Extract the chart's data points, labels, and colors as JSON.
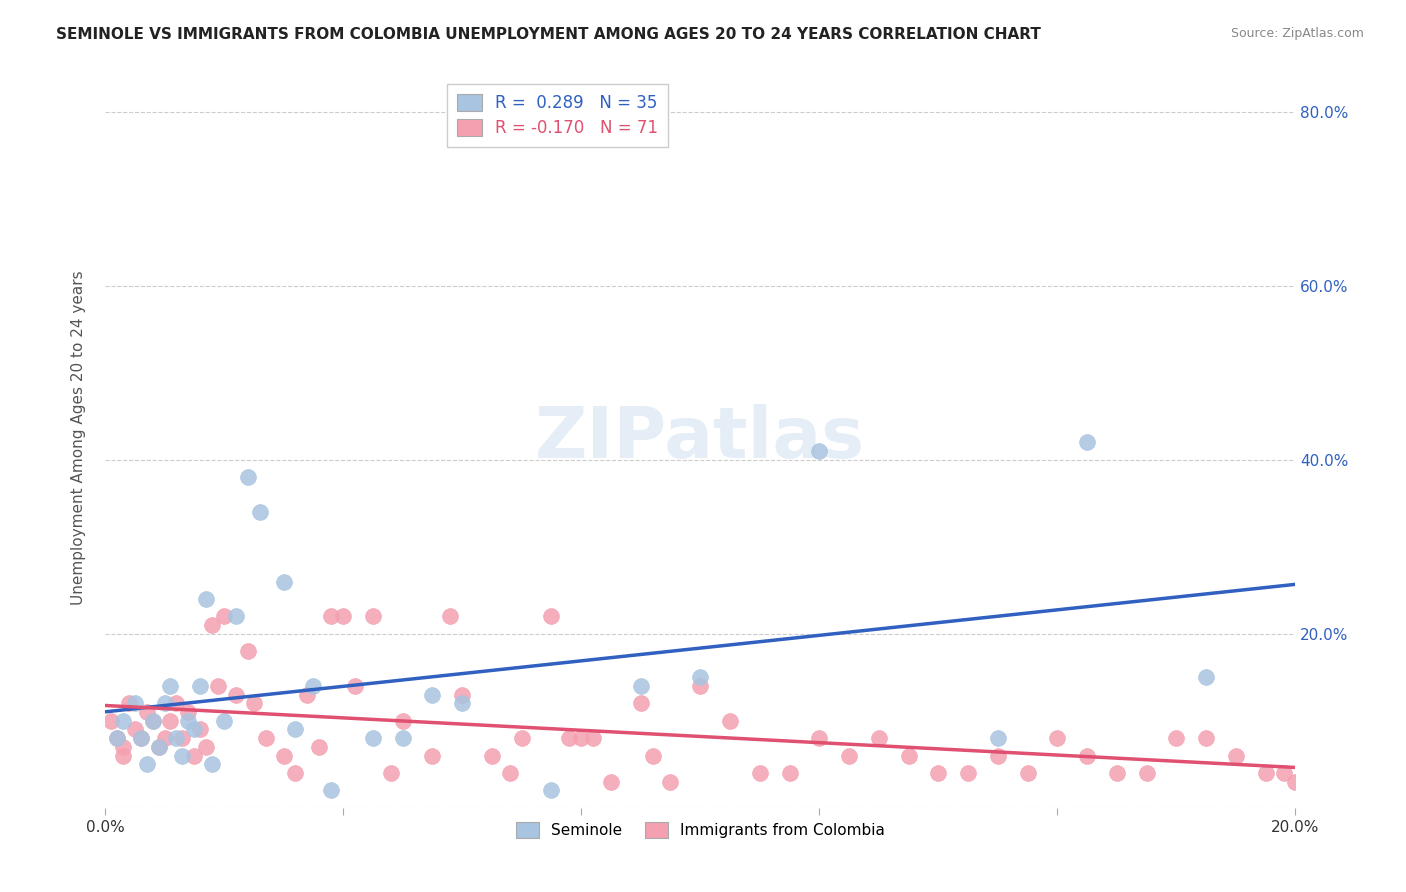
{
  "title": "SEMINOLE VS IMMIGRANTS FROM COLOMBIA UNEMPLOYMENT AMONG AGES 20 TO 24 YEARS CORRELATION CHART",
  "source": "Source: ZipAtlas.com",
  "ylabel": "Unemployment Among Ages 20 to 24 years",
  "xlim": [
    0.0,
    0.2
  ],
  "ylim": [
    0.0,
    0.85
  ],
  "yticks": [
    0.0,
    0.2,
    0.4,
    0.6,
    0.8
  ],
  "ytick_labels": [
    "",
    "20.0%",
    "40.0%",
    "60.0%",
    "80.0%"
  ],
  "xticks": [
    0.0,
    0.04,
    0.08,
    0.12,
    0.16,
    0.2
  ],
  "xtick_labels": [
    "0.0%",
    "",
    "",
    "",
    "",
    "20.0%"
  ],
  "seminole_R": 0.289,
  "seminole_N": 35,
  "colombia_R": -0.17,
  "colombia_N": 71,
  "seminole_color": "#a8c4e0",
  "colombia_color": "#f4a0b0",
  "trendline_blue": "#3060c0",
  "trendline_pink": "#e05070",
  "background_color": "#ffffff",
  "seminole_x": [
    0.002,
    0.003,
    0.005,
    0.007,
    0.008,
    0.009,
    0.01,
    0.011,
    0.012,
    0.013,
    0.014,
    0.015,
    0.016,
    0.017,
    0.018,
    0.02,
    0.022,
    0.024,
    0.026,
    0.03,
    0.032,
    0.035,
    0.038,
    0.045,
    0.05,
    0.055,
    0.06,
    0.075,
    0.09,
    0.1,
    0.12,
    0.15,
    0.165,
    0.185,
    0.006
  ],
  "seminole_y": [
    0.08,
    0.1,
    0.12,
    0.05,
    0.1,
    0.07,
    0.12,
    0.14,
    0.08,
    0.06,
    0.1,
    0.09,
    0.14,
    0.24,
    0.05,
    0.1,
    0.22,
    0.38,
    0.34,
    0.26,
    0.09,
    0.14,
    0.02,
    0.08,
    0.08,
    0.13,
    0.12,
    0.02,
    0.14,
    0.15,
    0.41,
    0.08,
    0.42,
    0.15,
    0.08
  ],
  "colombia_x": [
    0.001,
    0.002,
    0.003,
    0.004,
    0.005,
    0.006,
    0.007,
    0.008,
    0.009,
    0.01,
    0.011,
    0.012,
    0.013,
    0.014,
    0.015,
    0.016,
    0.017,
    0.018,
    0.019,
    0.02,
    0.022,
    0.024,
    0.025,
    0.027,
    0.03,
    0.032,
    0.034,
    0.036,
    0.038,
    0.04,
    0.042,
    0.045,
    0.048,
    0.05,
    0.055,
    0.058,
    0.06,
    0.065,
    0.068,
    0.07,
    0.075,
    0.078,
    0.08,
    0.082,
    0.085,
    0.09,
    0.092,
    0.095,
    0.1,
    0.105,
    0.11,
    0.115,
    0.12,
    0.125,
    0.13,
    0.135,
    0.14,
    0.145,
    0.15,
    0.155,
    0.16,
    0.165,
    0.17,
    0.175,
    0.18,
    0.185,
    0.19,
    0.195,
    0.198,
    0.2,
    0.003
  ],
  "colombia_y": [
    0.1,
    0.08,
    0.07,
    0.12,
    0.09,
    0.08,
    0.11,
    0.1,
    0.07,
    0.08,
    0.1,
    0.12,
    0.08,
    0.11,
    0.06,
    0.09,
    0.07,
    0.21,
    0.14,
    0.22,
    0.13,
    0.18,
    0.12,
    0.08,
    0.06,
    0.04,
    0.13,
    0.07,
    0.22,
    0.22,
    0.14,
    0.22,
    0.04,
    0.1,
    0.06,
    0.22,
    0.13,
    0.06,
    0.04,
    0.08,
    0.22,
    0.08,
    0.08,
    0.08,
    0.03,
    0.12,
    0.06,
    0.03,
    0.14,
    0.1,
    0.04,
    0.04,
    0.08,
    0.06,
    0.08,
    0.06,
    0.04,
    0.04,
    0.06,
    0.04,
    0.08,
    0.06,
    0.04,
    0.04,
    0.08,
    0.08,
    0.06,
    0.04,
    0.04,
    0.03,
    0.06
  ]
}
